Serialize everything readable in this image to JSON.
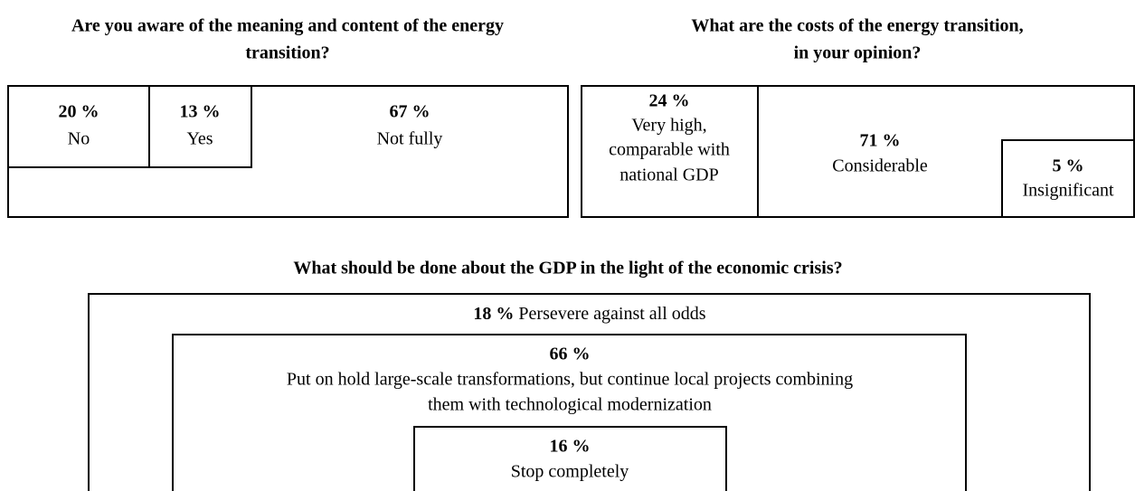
{
  "panels": [
    {
      "title": [
        "Are you aware of the meaning and content of the energy",
        "transition?"
      ],
      "items": [
        {
          "percent": "20 %",
          "label": [
            "No"
          ]
        },
        {
          "percent": "13 %",
          "label": [
            "Yes"
          ]
        },
        {
          "percent": "67 %",
          "label": [
            "Not fully"
          ]
        }
      ]
    },
    {
      "title": [
        "What are the costs of the energy transition,",
        "in your opinion?"
      ],
      "items": [
        {
          "percent": "24 %",
          "label": [
            "Very high,",
            "comparable with",
            "national GDP"
          ]
        },
        {
          "percent": "71 %",
          "label": [
            "Considerable"
          ]
        },
        {
          "percent": "5 %",
          "label": [
            "Insignificant"
          ]
        }
      ]
    },
    {
      "title": [
        "What should be done about the GDP in the light of the economic crisis?"
      ],
      "items": [
        {
          "percent": "18 %",
          "label": [
            "Persevere against all odds"
          ]
        },
        {
          "percent": "66 %",
          "label": [
            "Put on hold large-scale transformations, but continue local projects combining",
            "them with technological modernization"
          ]
        },
        {
          "percent": "16 %",
          "label": [
            "Stop completely"
          ]
        }
      ]
    }
  ]
}
